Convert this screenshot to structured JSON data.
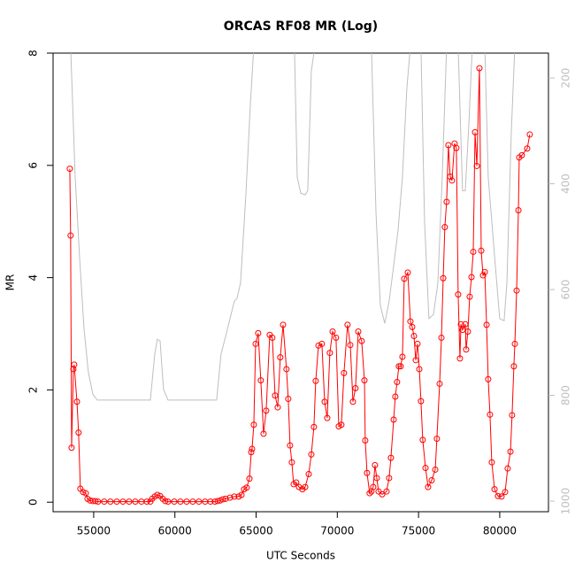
{
  "chart_data": {
    "type": "line",
    "title": "ORCAS RF08 MR (Log)",
    "x_label": "UTC Seconds",
    "y_label": "MR",
    "xlim": [
      52500,
      83000
    ],
    "xticks": [
      55000,
      60000,
      65000,
      70000,
      75000,
      80000
    ],
    "ylim": [
      -0.17,
      8
    ],
    "yticks": [
      0,
      2,
      4,
      6,
      8
    ],
    "y2lim": [
      1020,
      153
    ],
    "y2ticks": [
      200,
      400,
      600,
      800,
      1000
    ],
    "series": [
      {
        "color": "#ff0000",
        "markers": true,
        "x": [
          53530,
          53580,
          53640,
          53750,
          53800,
          53970,
          54070,
          54180,
          54350,
          54510,
          54620,
          54780,
          54950,
          55110,
          55270,
          55650,
          56030,
          56420,
          56800,
          57180,
          57560,
          57940,
          58270,
          58490,
          58600,
          58760,
          58920,
          59090,
          59250,
          59410,
          59580,
          59960,
          60340,
          60720,
          61100,
          61480,
          61860,
          62190,
          62460,
          62630,
          62790,
          62950,
          63120,
          63390,
          63660,
          63930,
          64100,
          64260,
          64420,
          64590,
          64700,
          64750,
          64860,
          64970,
          65130,
          65290,
          65460,
          65620,
          65840,
          66000,
          66170,
          66330,
          66490,
          66660,
          66870,
          66980,
          67090,
          67200,
          67310,
          67470,
          67640,
          67850,
          68020,
          68240,
          68400,
          68560,
          68670,
          68840,
          69050,
          69220,
          69380,
          69540,
          69710,
          69920,
          70090,
          70250,
          70410,
          70630,
          70800,
          70960,
          71120,
          71290,
          71500,
          71670,
          71720,
          71830,
          71990,
          72100,
          72210,
          72320,
          72430,
          72540,
          72760,
          73030,
          73190,
          73300,
          73470,
          73570,
          73680,
          73790,
          73900,
          74010,
          74120,
          74340,
          74500,
          74610,
          74720,
          74830,
          74940,
          75050,
          75150,
          75260,
          75430,
          75590,
          75810,
          76030,
          76130,
          76300,
          76410,
          76520,
          76620,
          76730,
          76840,
          76950,
          77060,
          77220,
          77330,
          77440,
          77550,
          77610,
          77710,
          77880,
          77930,
          78040,
          78150,
          78260,
          78370,
          78480,
          78590,
          78750,
          78860,
          78970,
          79080,
          79190,
          79290,
          79400,
          79510,
          79680,
          79890,
          80110,
          80330,
          80490,
          80660,
          80760,
          80870,
          80930,
          81040,
          81150,
          81200,
          81360,
          81690,
          81850
        ],
        "values": [
          5.94,
          4.75,
          0.97,
          2.37,
          2.45,
          1.79,
          1.24,
          0.24,
          0.18,
          0.16,
          0.06,
          0.03,
          0.02,
          0.02,
          0.01,
          0.01,
          0.01,
          0.01,
          0.01,
          0.01,
          0.01,
          0.01,
          0.01,
          0.01,
          0.06,
          0.1,
          0.13,
          0.11,
          0.06,
          0.02,
          0.01,
          0.01,
          0.01,
          0.01,
          0.01,
          0.01,
          0.01,
          0.01,
          0.01,
          0.02,
          0.03,
          0.05,
          0.06,
          0.08,
          0.1,
          0.1,
          0.13,
          0.23,
          0.26,
          0.42,
          0.89,
          0.95,
          1.38,
          2.82,
          3.01,
          2.17,
          1.22,
          1.63,
          2.98,
          2.93,
          1.9,
          1.69,
          2.58,
          3.16,
          2.37,
          1.84,
          1.01,
          0.71,
          0.32,
          0.35,
          0.27,
          0.23,
          0.27,
          0.5,
          0.85,
          1.34,
          2.16,
          2.79,
          2.82,
          1.79,
          1.5,
          2.66,
          3.04,
          2.93,
          1.35,
          1.38,
          2.3,
          3.16,
          2.8,
          1.79,
          2.03,
          3.04,
          2.87,
          2.17,
          1.1,
          0.52,
          0.16,
          0.19,
          0.27,
          0.66,
          0.43,
          0.19,
          0.14,
          0.19,
          0.43,
          0.79,
          1.47,
          1.88,
          2.14,
          2.42,
          2.42,
          2.59,
          3.98,
          4.09,
          3.22,
          3.12,
          2.96,
          2.53,
          2.82,
          2.37,
          1.8,
          1.11,
          0.61,
          0.27,
          0.39,
          0.58,
          1.13,
          2.11,
          2.93,
          3.99,
          4.9,
          5.35,
          6.36,
          5.8,
          5.73,
          6.39,
          6.31,
          3.7,
          2.56,
          3.17,
          3.07,
          3.17,
          2.72,
          3.04,
          3.66,
          4.01,
          4.46,
          6.59,
          5.99,
          7.73,
          4.48,
          4.04,
          4.1,
          3.16,
          2.19,
          1.56,
          0.71,
          0.23,
          0.11,
          0.1,
          0.18,
          0.6,
          0.9,
          1.55,
          2.42,
          2.82,
          3.77,
          5.2,
          6.14,
          6.18,
          6.3,
          6.55
        ]
      },
      {
        "color": "#bebebe",
        "axis": "y2",
        "markers": false,
        "x": [
          53580,
          53860,
          54130,
          54400,
          54670,
          54950,
          55220,
          58490,
          58760,
          58920,
          59090,
          59300,
          59580,
          62570,
          62840,
          63120,
          63660,
          63820,
          64040,
          64370,
          64640,
          64860,
          65570,
          67360,
          67530,
          67750,
          68020,
          68180,
          68400,
          68620,
          72100,
          72380,
          72650,
          72920,
          73190,
          73470,
          73740,
          74010,
          74280,
          74500,
          75150,
          75370,
          75640,
          75920,
          76190,
          76460,
          76730,
          77440,
          77550,
          77710,
          77880,
          78100,
          78310,
          79080,
          79290,
          79730,
          80000,
          80270,
          80440,
          80710,
          80930
        ],
        "values": [
          140,
          387,
          538,
          672,
          756,
          798,
          809,
          809,
          722,
          694,
          697,
          789,
          809,
          809,
          722,
          689,
          622,
          617,
          588,
          421,
          254,
          140,
          140,
          140,
          387,
          418,
          421,
          413,
          187,
          140,
          140,
          454,
          630,
          664,
          622,
          555,
          488,
          387,
          220,
          140,
          140,
          471,
          655,
          647,
          588,
          387,
          140,
          140,
          254,
          413,
          413,
          287,
          140,
          140,
          387,
          555,
          655,
          659,
          588,
          304,
          140
        ]
      }
    ]
  }
}
